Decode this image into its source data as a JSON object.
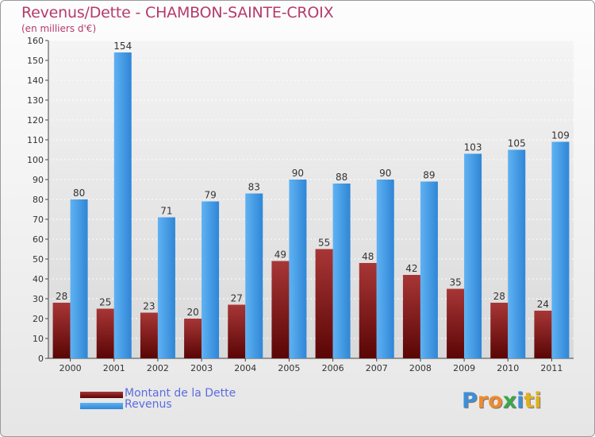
{
  "chart_data": {
    "type": "bar",
    "title": "Revenus/Dette - CHAMBON-SAINTE-CROIX",
    "subtitle": "(en milliers d'€)",
    "xlabel": "",
    "ylabel": "",
    "ylim": [
      0,
      160
    ],
    "yticks": [
      0,
      10,
      20,
      30,
      40,
      50,
      60,
      70,
      80,
      90,
      100,
      110,
      120,
      130,
      140,
      150,
      160
    ],
    "grid": true,
    "categories": [
      "2000",
      "2001",
      "2002",
      "2003",
      "2004",
      "2005",
      "2006",
      "2007",
      "2008",
      "2009",
      "2010",
      "2011"
    ],
    "series": [
      {
        "name": "Montant de la Dette",
        "color": "#7a1212",
        "values": [
          28,
          25,
          23,
          20,
          27,
          49,
          55,
          48,
          42,
          35,
          28,
          24
        ]
      },
      {
        "name": "Revenus",
        "color": "#3d9be8",
        "values": [
          80,
          154,
          71,
          79,
          83,
          90,
          88,
          90,
          89,
          103,
          105,
          109
        ]
      }
    ],
    "legend_position": "bottom-left"
  },
  "colors": {
    "title": "#b53a6b",
    "legend_text": "#5b6be0",
    "dette": "#7a1212",
    "revenus": "#3d9be8"
  },
  "logo": {
    "letters": [
      "P",
      "r",
      "o",
      "x",
      "i",
      "t",
      "i"
    ],
    "colors": [
      "#3f8fd6",
      "#f08a2c",
      "#f08a2c",
      "#3aa84a",
      "#3f8fd6",
      "#e0b020",
      "#e0b020"
    ]
  }
}
